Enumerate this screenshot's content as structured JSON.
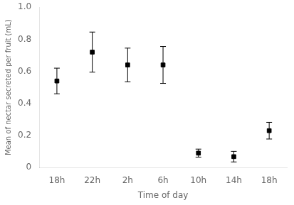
{
  "chart_data": {
    "type": "scatter",
    "xlabel": "Time of day",
    "ylabel": "Mean of nectar secreted per fruit (mL)",
    "categories": [
      "18h",
      "22h",
      "2h",
      "6h",
      "10h",
      "14h",
      "18h"
    ],
    "values": [
      0.54,
      0.72,
      0.64,
      0.64,
      0.09,
      0.068,
      0.23
    ],
    "errors": [
      0.08,
      0.125,
      0.105,
      0.115,
      0.025,
      0.033,
      0.052
    ],
    "color": "#000000",
    "marker": "square",
    "line_style": "none",
    "ylim": [
      0,
      1.0
    ],
    "yticks": [
      0,
      0.2,
      0.4,
      0.6,
      0.8,
      {
        "value": 1.0,
        "label": "1.0"
      }
    ],
    "grid": false,
    "legend": "none"
  }
}
